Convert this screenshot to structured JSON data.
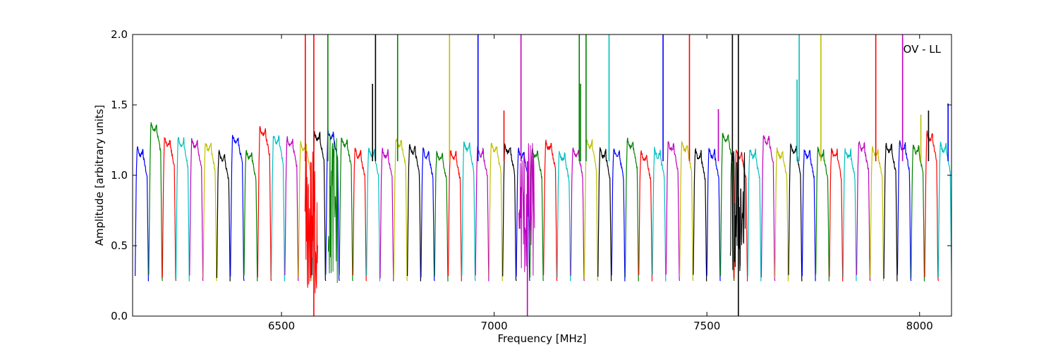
{
  "chart_data": {
    "type": "line",
    "title": "",
    "xlabel": "Frequency [MHz]",
    "ylabel": "Amplitude [arbitrary units]",
    "xlim": [
      6150,
      8075
    ],
    "ylim": [
      0.0,
      2.0
    ],
    "xticks": [
      6500,
      7000,
      7500,
      8000
    ],
    "yticks": [
      0.0,
      0.5,
      1.0,
      1.5,
      2.0
    ],
    "xtick_labels": [
      "6500",
      "7000",
      "7500",
      "8000"
    ],
    "ytick_labels": [
      "0.0",
      "0.5",
      "1.0",
      "1.5",
      "2.0"
    ],
    "annotation": "OV - LL",
    "grid": false,
    "legend": "none",
    "band_width_mhz": 32,
    "color_cycle": [
      "#0000ff",
      "#008000",
      "#ff0000",
      "#00bfbf",
      "#bf00bf",
      "#bfbf00",
      "#000000"
    ],
    "band_centers_mhz": [
      6172,
      6204,
      6236,
      6268,
      6300,
      6332,
      6364,
      6396,
      6428,
      6460,
      6492,
      6524,
      6556,
      6588,
      6620,
      6652,
      6684,
      6716,
      6748,
      6780,
      6812,
      6844,
      6876,
      6908,
      6940,
      6972,
      7004,
      7036,
      7068,
      7100,
      7132,
      7164,
      7196,
      7228,
      7260,
      7292,
      7324,
      7356,
      7388,
      7420,
      7452,
      7484,
      7516,
      7548,
      7580,
      7612,
      7644,
      7676,
      7708,
      7740,
      7772,
      7804,
      7836,
      7868,
      7900,
      7932,
      7964,
      7996,
      8028,
      8060
    ],
    "band_peak_amplitudes": [
      1.23,
      1.41,
      1.3,
      1.3,
      1.29,
      1.27,
      1.2,
      1.32,
      1.21,
      1.38,
      1.32,
      1.3,
      1.27,
      1.34,
      1.35,
      1.3,
      1.22,
      1.23,
      1.22,
      1.3,
      1.25,
      1.22,
      1.2,
      1.21,
      1.27,
      1.23,
      1.26,
      1.25,
      1.22,
      1.22,
      1.28,
      1.2,
      1.23,
      1.29,
      1.22,
      1.22,
      1.29,
      1.2,
      1.22,
      1.27,
      1.27,
      1.21,
      1.22,
      1.34,
      1.21,
      1.22,
      1.32,
      1.22,
      1.25,
      1.22,
      1.22,
      1.22,
      1.22,
      1.27,
      1.23,
      1.26,
      1.27,
      1.25,
      1.34,
      1.26
    ],
    "spikes": [
      {
        "x": 6556,
        "y": 2.0,
        "color": "#ff0000"
      },
      {
        "x": 6576,
        "y": 2.0,
        "color": "#ff0000"
      },
      {
        "x": 6576,
        "y": 0.0,
        "color": "#ff0000"
      },
      {
        "x": 6609,
        "y": 2.0,
        "color": "#008000"
      },
      {
        "x": 6714,
        "y": 1.65,
        "color": "#000000"
      },
      {
        "x": 6721,
        "y": 2.0,
        "color": "#000000"
      },
      {
        "x": 6773,
        "y": 2.0,
        "color": "#008000"
      },
      {
        "x": 6895,
        "y": 2.0,
        "color": "#bfbf00"
      },
      {
        "x": 6962,
        "y": 2.0,
        "color": "#0000ff"
      },
      {
        "x": 7023,
        "y": 1.46,
        "color": "#ff0000"
      },
      {
        "x": 7063,
        "y": 2.0,
        "color": "#bf00bf"
      },
      {
        "x": 7078,
        "y": 0.0,
        "color": "#bf00bf"
      },
      {
        "x": 7200,
        "y": 2.0,
        "color": "#008000"
      },
      {
        "x": 7203,
        "y": 1.65,
        "color": "#008000"
      },
      {
        "x": 7216,
        "y": 2.0,
        "color": "#008000"
      },
      {
        "x": 7270,
        "y": 2.0,
        "color": "#00bfbf"
      },
      {
        "x": 7397,
        "y": 2.0,
        "color": "#0000ff"
      },
      {
        "x": 7459,
        "y": 2.0,
        "color": "#ff0000"
      },
      {
        "x": 7527,
        "y": 1.47,
        "color": "#bf00bf"
      },
      {
        "x": 7560,
        "y": 2.0,
        "color": "#000000"
      },
      {
        "x": 7574,
        "y": 2.0,
        "color": "#000000"
      },
      {
        "x": 7574,
        "y": 0.0,
        "color": "#000000"
      },
      {
        "x": 7712,
        "y": 1.68,
        "color": "#00bfbf"
      },
      {
        "x": 7717,
        "y": 2.0,
        "color": "#00bfbf"
      },
      {
        "x": 7768,
        "y": 2.0,
        "color": "#bfbf00"
      },
      {
        "x": 7897,
        "y": 2.0,
        "color": "#ff0000"
      },
      {
        "x": 7960,
        "y": 2.0,
        "color": "#bf00bf"
      },
      {
        "x": 8003,
        "y": 1.43,
        "color": "#bfbf00"
      },
      {
        "x": 8021,
        "y": 1.46,
        "color": "#000000"
      },
      {
        "x": 8067,
        "y": 1.51,
        "color": "#0000ff"
      }
    ],
    "noisy_regions": [
      {
        "x0": 6555,
        "x1": 6585,
        "color": "#ff0000",
        "ymin": 0.1,
        "ymax": 1.2
      },
      {
        "x0": 6610,
        "x1": 6632,
        "color": "#008000",
        "ymin": 0.2,
        "ymax": 1.35
      },
      {
        "x0": 7058,
        "x1": 7095,
        "color": "#bf00bf",
        "ymin": 0.25,
        "ymax": 1.25
      },
      {
        "x0": 7555,
        "x1": 7590,
        "color": "#000000",
        "ymin": 0.25,
        "ymax": 1.2
      }
    ]
  }
}
